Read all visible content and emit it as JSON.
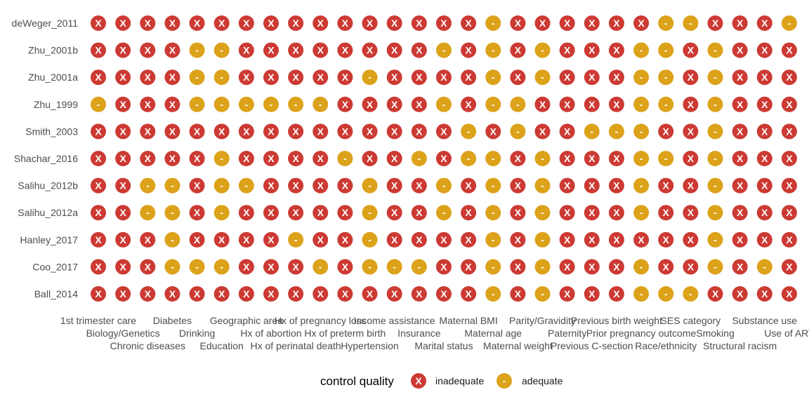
{
  "chart_data": {
    "type": "dot-matrix",
    "title": "",
    "xlabel": "",
    "ylabel": "",
    "grid": false,
    "legend_placement": "bottom",
    "legend": {
      "title": "control quality",
      "entries": [
        {
          "key": "X",
          "symbol": "X",
          "label": "inadequate",
          "color": "#cc3a33"
        },
        {
          "key": "-",
          "symbol": "-",
          "label": "adequate",
          "color": "#dca21a"
        }
      ]
    },
    "x_categories": [
      "1st trimester care",
      "Biology/Genetics",
      "Chronic diseases",
      "Diabetes",
      "Drinking",
      "Education",
      "Geographic area",
      "Hx of abortion",
      "Hx of perinatal death",
      "Hx of pregnancy loss",
      "Hx of preterm birth",
      "Hypertension",
      "Income assistance",
      "Insurance",
      "Marital status",
      "Maternal BMI",
      "Maternal age",
      "Maternal weight",
      "Parity/Gravidity",
      "Paternity",
      "Previous C-section",
      "Previous birth weight",
      "Prior pregnancy outcome",
      "Race/ethnicity",
      "SES category",
      "Smoking",
      "Structural racism",
      "Substance use",
      "Use of ART"
    ],
    "y_categories": [
      "deWeger_2011",
      "Zhu_2001b",
      "Zhu_2001a",
      "Zhu_1999",
      "Smith_2003",
      "Shachar_2016",
      "Salihu_2012b",
      "Salihu_2012a",
      "Hanley_2017",
      "Coo_2017",
      "Ball_2014"
    ],
    "values": [
      [
        "X",
        "X",
        "X",
        "X",
        "X",
        "X",
        "X",
        "X",
        "X",
        "X",
        "X",
        "X",
        "X",
        "X",
        "X",
        "X",
        "-",
        "X",
        "X",
        "X",
        "X",
        "X",
        "X",
        "-",
        "-",
        "X",
        "X",
        "X",
        "-"
      ],
      [
        "X",
        "X",
        "X",
        "X",
        "-",
        "-",
        "X",
        "X",
        "X",
        "X",
        "X",
        "X",
        "X",
        "X",
        "-",
        "X",
        "-",
        "X",
        "-",
        "X",
        "X",
        "X",
        "-",
        "-",
        "X",
        "-",
        "X",
        "X",
        "X"
      ],
      [
        "X",
        "X",
        "X",
        "X",
        "-",
        "-",
        "X",
        "X",
        "X",
        "X",
        "X",
        "-",
        "X",
        "X",
        "X",
        "X",
        "-",
        "X",
        "-",
        "X",
        "X",
        "X",
        "-",
        "-",
        "X",
        "-",
        "X",
        "X",
        "X"
      ],
      [
        "-",
        "X",
        "X",
        "X",
        "-",
        "-",
        "-",
        "-",
        "-",
        "-",
        "X",
        "X",
        "X",
        "X",
        "-",
        "X",
        "-",
        "-",
        "X",
        "X",
        "X",
        "X",
        "-",
        "-",
        "X",
        "-",
        "X",
        "X",
        "X"
      ],
      [
        "X",
        "X",
        "X",
        "X",
        "X",
        "X",
        "X",
        "X",
        "X",
        "X",
        "X",
        "X",
        "X",
        "X",
        "X",
        "-",
        "X",
        "-",
        "X",
        "X",
        "-",
        "-",
        "-",
        "X",
        "X",
        "-",
        "X",
        "X",
        "X"
      ],
      [
        "X",
        "X",
        "X",
        "X",
        "X",
        "-",
        "X",
        "X",
        "X",
        "X",
        "-",
        "X",
        "X",
        "-",
        "X",
        "-",
        "-",
        "X",
        "-",
        "X",
        "X",
        "X",
        "-",
        "-",
        "X",
        "-",
        "X",
        "X",
        "X"
      ],
      [
        "X",
        "X",
        "-",
        "-",
        "X",
        "-",
        "-",
        "X",
        "X",
        "X",
        "X",
        "-",
        "X",
        "X",
        "-",
        "X",
        "-",
        "X",
        "-",
        "X",
        "X",
        "X",
        "-",
        "X",
        "X",
        "-",
        "X",
        "X",
        "X"
      ],
      [
        "X",
        "X",
        "-",
        "-",
        "X",
        "-",
        "X",
        "X",
        "X",
        "X",
        "X",
        "-",
        "X",
        "X",
        "-",
        "X",
        "-",
        "X",
        "-",
        "X",
        "X",
        "X",
        "-",
        "X",
        "X",
        "-",
        "X",
        "X",
        "X"
      ],
      [
        "X",
        "X",
        "X",
        "-",
        "X",
        "X",
        "X",
        "X",
        "-",
        "X",
        "X",
        "-",
        "X",
        "X",
        "X",
        "X",
        "-",
        "X",
        "-",
        "X",
        "X",
        "X",
        "X",
        "X",
        "X",
        "-",
        "X",
        "X",
        "X"
      ],
      [
        "X",
        "X",
        "X",
        "-",
        "-",
        "-",
        "X",
        "X",
        "X",
        "-",
        "X",
        "-",
        "-",
        "-",
        "X",
        "X",
        "-",
        "X",
        "-",
        "X",
        "X",
        "X",
        "-",
        "X",
        "X",
        "-",
        "X",
        "-",
        "X"
      ],
      [
        "X",
        "X",
        "X",
        "X",
        "X",
        "X",
        "X",
        "X",
        "X",
        "X",
        "X",
        "X",
        "X",
        "X",
        "X",
        "X",
        "-",
        "X",
        "-",
        "X",
        "X",
        "X",
        "-",
        "-",
        "-",
        "X",
        "X",
        "X",
        "X"
      ]
    ]
  }
}
